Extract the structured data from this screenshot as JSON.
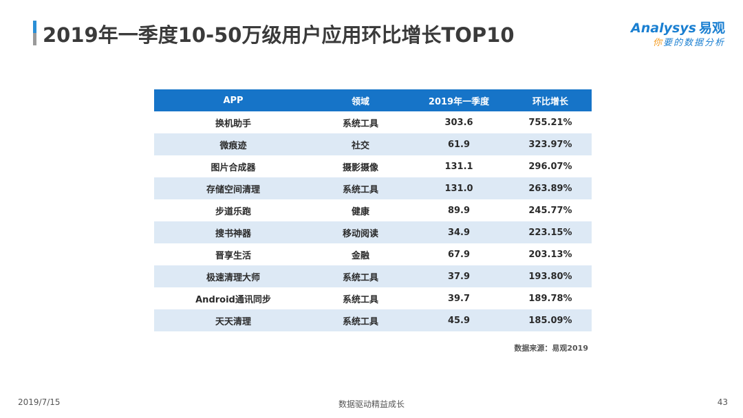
{
  "header": {
    "title": "2019年一季度10-50万级用户应用环比增长TOP10"
  },
  "logo": {
    "brand": "Analysys",
    "brand_cn": "易观",
    "slogan_first": "你",
    "slogan_rest": "要的数据分析"
  },
  "table": {
    "columns": [
      "APP",
      "领域",
      "2019年一季度",
      "环比增长"
    ],
    "rows": [
      [
        "换机助手",
        "系统工具",
        "303.6",
        "755.21%"
      ],
      [
        "微痕迹",
        "社交",
        "61.9",
        "323.97%"
      ],
      [
        "图片合成器",
        "摄影摄像",
        "131.1",
        "296.07%"
      ],
      [
        "存储空间清理",
        "系统工具",
        "131.0",
        "263.89%"
      ],
      [
        "步道乐跑",
        "健康",
        "89.9",
        "245.77%"
      ],
      [
        "搜书神器",
        "移动阅读",
        "34.9",
        "223.15%"
      ],
      [
        "晋享生活",
        "金融",
        "67.9",
        "203.13%"
      ],
      [
        "极速清理大师",
        "系统工具",
        "37.9",
        "193.80%"
      ],
      [
        "Android通讯同步",
        "系统工具",
        "39.7",
        "189.78%"
      ],
      [
        "天天清理",
        "系统工具",
        "45.9",
        "185.09%"
      ]
    ]
  },
  "source": "数据来源：易观2019",
  "footer": {
    "date": "2019/7/15",
    "center": "数据驱动精益成长",
    "page": "43"
  },
  "colors": {
    "header_blue": "#1674c8",
    "stripe": "#dde9f5",
    "accent_orange": "#f39a1e"
  }
}
